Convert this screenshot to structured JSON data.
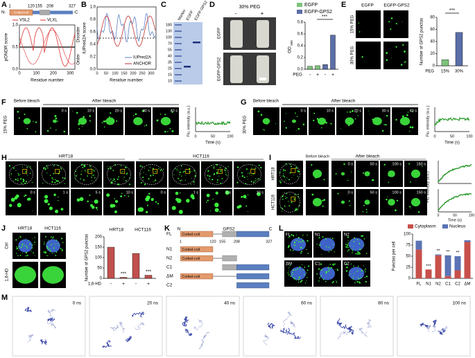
{
  "A": {
    "letter": "A",
    "n": "N-",
    "c": "-C",
    "coiled": "Coiled-coil",
    "pos": [
      "1",
      "120",
      "155",
      "208",
      "327"
    ],
    "legend": [
      "VSL2",
      "VLXL"
    ],
    "ylabel": "pONDR score",
    "side": [
      "Order",
      "Disorder"
    ],
    "yticks": [
      "0.0",
      "0.5",
      "1.0"
    ],
    "xticks": [
      "0",
      "100",
      "200",
      "300"
    ],
    "xlabel": "Residue number"
  },
  "B": {
    "letter": "B",
    "ylabel": "IUPred2A score",
    "yticks": [
      "0.0",
      "0.2",
      "0.4",
      "0.6",
      "0.8",
      "1.0"
    ],
    "xticks": [
      "0",
      "50",
      "100",
      "150",
      "200",
      "250",
      "300"
    ],
    "xlabel": "Residue number",
    "legend": [
      "IUPred2A",
      "ANCHOR"
    ]
  },
  "C": {
    "letter": "C",
    "lanes": [
      "Marker",
      "EGFP",
      "EGFP-GPS2"
    ],
    "ladder": [
      "180",
      "130",
      "100",
      "70",
      "55",
      "40",
      "35",
      "25",
      "15",
      "10"
    ]
  },
  "D": {
    "letter": "D",
    "title": "30% PEG",
    "cols": [
      "-",
      "+"
    ],
    "rows": [
      "EGFP",
      "EGFP-GPS2"
    ],
    "legend": [
      "EGFP",
      "EGFP-GPS2"
    ],
    "colors": [
      "#7cc47c",
      "#5a6ea8"
    ],
    "ylabel": "OD",
    "ysub": "600",
    "ylim": [
      0,
      0.8
    ],
    "yticks": [
      {
        "value": 0,
        "label": "0.0"
      },
      0.2,
      0.4,
      0.6,
      0.8
    ],
    "values": [
      0.05,
      0.06,
      0.08,
      0.58
    ],
    "xrow": "PEG",
    "xsigns": [
      "-",
      "+",
      "-",
      "+"
    ],
    "sig": "***"
  },
  "E": {
    "letter": "E",
    "cols": [
      "EGFP",
      "EGFP-GPS2"
    ],
    "rows": [
      "15% PEG",
      "30% PEG"
    ],
    "ylabel": "Number of GPS2 punctas",
    "ylim": [
      0,
      80
    ],
    "yticks": [
      0,
      20,
      40,
      60,
      80
    ],
    "values": [
      10,
      55
    ],
    "colors": [
      "#7cc47c",
      "#5a6ea8"
    ],
    "cats": [
      "15%",
      "30%"
    ],
    "xrow": "PEG",
    "sig": "***"
  },
  "F": {
    "letter": "F",
    "side": "15% PEG",
    "before": "Before bleach",
    "after": "After bleach",
    "times": [
      "0 s",
      "10 s",
      "20 s",
      "30 s",
      "40 s"
    ],
    "ylabel": "Flu. intensity (a.u.)",
    "xlabel": "Time (s)",
    "xticks": [
      "0",
      "50",
      "100"
    ]
  },
  "G": {
    "letter": "G",
    "side": "30% PEG",
    "before": "Before bleach",
    "after": "After bleach",
    "times": [
      "0 s",
      "10 s",
      "20 s",
      "30 s",
      "40 s"
    ],
    "ylabel": "Flu. intensity (a.u.)",
    "xlabel": "Time (s)",
    "xticks": [
      "0",
      "50",
      "100"
    ]
  },
  "H": {
    "letter": "H",
    "cells": [
      "HRT18",
      "HCT116"
    ],
    "times": [
      "0 s",
      "1 s",
      "5 s",
      "10 s",
      "0 s",
      "1 s",
      "5 s",
      "10 s"
    ]
  },
  "I": {
    "letter": "I",
    "before": "Before bleach",
    "after": "After bleach",
    "rows": [
      "HRT18",
      "HCT116"
    ],
    "times": [
      "0 s",
      "50 s",
      "100 s",
      "150 s"
    ],
    "ylabel": "Flu. intensity (a.u.)",
    "xlabel": "Time (s)",
    "xticks": [
      "0",
      "50",
      "100"
    ]
  },
  "J": {
    "letter": "J",
    "cols": [
      "HRT18",
      "HCT116"
    ],
    "rows": [
      "Ctrl",
      "1,6-HD"
    ],
    "groups": [
      "HRT18",
      "HCT116"
    ],
    "ylabel": "Number of GPS2 punctas",
    "ylim": [
      0,
      200
    ],
    "yticks": [
      0,
      50,
      100,
      150,
      200
    ],
    "values": [
      150,
      5,
      120,
      15
    ],
    "color": "#c0504d",
    "xrow": "1,6-HD",
    "xsigns": [
      "-",
      "+",
      "-",
      "+"
    ],
    "sig": [
      "***",
      "***"
    ]
  },
  "K": {
    "letter": "K",
    "n": "N",
    "c": "C",
    "protein": "GPS2",
    "rows": [
      "FL",
      "N1",
      "N2",
      "C1",
      "ΔM",
      "C2"
    ],
    "coiled": "Coiled-coil",
    "pos": [
      "1",
      "120",
      "155",
      "208",
      "327"
    ]
  },
  "L": {
    "letter": "L",
    "images": [
      "FL",
      "N1",
      "N2",
      "ΔM",
      "C1",
      "C2"
    ],
    "ylabel": "Punctas per cell",
    "ylim": [
      0,
      100
    ],
    "yticks": [
      0,
      25,
      50,
      75,
      100
    ],
    "categories": [
      "FL",
      "N1",
      "N2",
      "C1",
      "C2",
      "ΔM"
    ],
    "series": [
      {
        "name": "Cytoplasm",
        "color": "#c8504a",
        "values": [
          65,
          20,
          52,
          5,
          18,
          82
        ]
      },
      {
        "name": "Nucleus",
        "color": "#5b73b5",
        "values": [
          20,
          0,
          2,
          47,
          32,
          4
        ]
      }
    ],
    "sig": [
      "***",
      "**",
      "**",
      "**"
    ]
  },
  "M": {
    "letter": "M",
    "times": [
      "0 ns",
      "20 ns",
      "40 ns",
      "60 ns",
      "80 ns",
      "100 ns"
    ]
  }
}
